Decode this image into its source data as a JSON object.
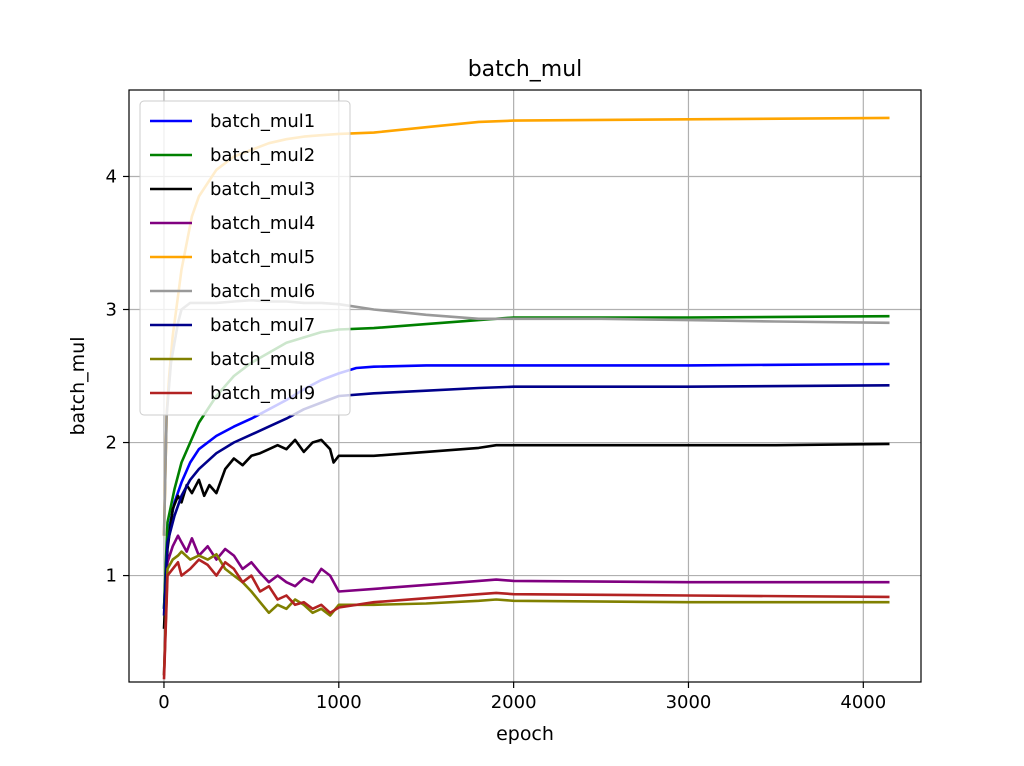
{
  "chart_data": {
    "type": "line",
    "title": "batch_mul",
    "xlabel": "epoch",
    "ylabel": "batch_mul",
    "xlim": [
      -200,
      4330
    ],
    "ylim": [
      0.2,
      4.65
    ],
    "xticks": [
      0,
      1000,
      2000,
      3000,
      4000
    ],
    "yticks": [
      1,
      2,
      3,
      4
    ],
    "grid": true,
    "legend_position": "upper left",
    "series": [
      {
        "name": "batch_mul1",
        "color": "#0000ff",
        "x": [
          0,
          20,
          60,
          100,
          150,
          200,
          300,
          400,
          500,
          600,
          700,
          800,
          900,
          1000,
          1100,
          1200,
          1500,
          2000,
          3000,
          4150
        ],
        "y": [
          0.75,
          1.3,
          1.55,
          1.7,
          1.85,
          1.95,
          2.05,
          2.12,
          2.18,
          2.25,
          2.32,
          2.4,
          2.47,
          2.52,
          2.56,
          2.57,
          2.58,
          2.58,
          2.58,
          2.59
        ]
      },
      {
        "name": "batch_mul2",
        "color": "#008000",
        "x": [
          0,
          20,
          60,
          100,
          150,
          200,
          300,
          400,
          500,
          700,
          900,
          1000,
          1200,
          1500,
          1800,
          2000,
          3000,
          4150
        ],
        "y": [
          0.75,
          1.4,
          1.65,
          1.85,
          2.0,
          2.15,
          2.35,
          2.5,
          2.6,
          2.75,
          2.83,
          2.85,
          2.86,
          2.89,
          2.92,
          2.94,
          2.94,
          2.95
        ]
      },
      {
        "name": "batch_mul3",
        "color": "#000000",
        "x": [
          0,
          20,
          50,
          80,
          100,
          130,
          160,
          200,
          230,
          260,
          300,
          350,
          400,
          450,
          500,
          550,
          600,
          650,
          700,
          750,
          800,
          850,
          900,
          950,
          970,
          1000,
          1200,
          1500,
          1800,
          1900,
          2000,
          2500,
          3000,
          3500,
          4150
        ],
        "y": [
          0.6,
          1.2,
          1.5,
          1.6,
          1.55,
          1.68,
          1.62,
          1.72,
          1.6,
          1.68,
          1.62,
          1.8,
          1.88,
          1.83,
          1.9,
          1.92,
          1.95,
          1.98,
          1.95,
          2.02,
          1.93,
          2.0,
          2.02,
          1.95,
          1.85,
          1.9,
          1.9,
          1.93,
          1.96,
          1.98,
          1.98,
          1.98,
          1.98,
          1.98,
          1.99
        ]
      },
      {
        "name": "batch_mul4",
        "color": "#800080",
        "x": [
          0,
          20,
          50,
          80,
          100,
          130,
          160,
          200,
          250,
          300,
          350,
          400,
          450,
          500,
          550,
          600,
          650,
          700,
          750,
          800,
          850,
          900,
          950,
          1000,
          1200,
          1500,
          1800,
          1900,
          2000,
          3000,
          4150
        ],
        "y": [
          0.25,
          1.1,
          1.22,
          1.3,
          1.25,
          1.18,
          1.28,
          1.15,
          1.22,
          1.12,
          1.2,
          1.15,
          1.05,
          1.1,
          1.02,
          0.95,
          1.0,
          0.95,
          0.92,
          0.98,
          0.95,
          1.05,
          1.0,
          0.88,
          0.9,
          0.93,
          0.96,
          0.97,
          0.96,
          0.95,
          0.95
        ]
      },
      {
        "name": "batch_mul5",
        "color": "#ffa500",
        "x": [
          0,
          15,
          30,
          50,
          80,
          100,
          130,
          160,
          200,
          300,
          400,
          500,
          600,
          700,
          800,
          900,
          1000,
          1200,
          1500,
          1800,
          2000,
          3000,
          4150
        ],
        "y": [
          1.3,
          2.2,
          2.5,
          2.8,
          3.1,
          3.3,
          3.5,
          3.7,
          3.85,
          4.05,
          4.15,
          4.2,
          4.25,
          4.28,
          4.3,
          4.31,
          4.32,
          4.33,
          4.37,
          4.41,
          4.42,
          4.43,
          4.44
        ]
      },
      {
        "name": "batch_mul6",
        "color": "#999999",
        "x": [
          0,
          15,
          40,
          80,
          100,
          150,
          200,
          300,
          400,
          500,
          600,
          700,
          800,
          900,
          1000,
          1200,
          1500,
          1800,
          2000,
          2500,
          3000,
          3500,
          4150
        ],
        "y": [
          1.3,
          2.2,
          2.6,
          2.9,
          3.0,
          3.05,
          3.05,
          3.05,
          3.06,
          3.07,
          3.06,
          3.06,
          3.05,
          3.05,
          3.04,
          3.0,
          2.96,
          2.93,
          2.93,
          2.93,
          2.92,
          2.91,
          2.9
        ]
      },
      {
        "name": "batch_mul7",
        "color": "#00008b",
        "x": [
          0,
          20,
          60,
          100,
          150,
          200,
          300,
          400,
          500,
          600,
          700,
          800,
          900,
          1000,
          1200,
          1500,
          1800,
          2000,
          3000,
          4150
        ],
        "y": [
          0.7,
          1.25,
          1.45,
          1.6,
          1.72,
          1.8,
          1.92,
          2.0,
          2.06,
          2.12,
          2.18,
          2.25,
          2.3,
          2.35,
          2.37,
          2.39,
          2.41,
          2.42,
          2.42,
          2.43
        ]
      },
      {
        "name": "batch_mul8",
        "color": "#808000",
        "x": [
          0,
          20,
          50,
          80,
          100,
          150,
          200,
          250,
          300,
          350,
          400,
          450,
          500,
          550,
          600,
          650,
          700,
          750,
          800,
          850,
          900,
          950,
          1000,
          1200,
          1500,
          1800,
          1900,
          2000,
          3000,
          4150
        ],
        "y": [
          0.25,
          1.05,
          1.12,
          1.15,
          1.18,
          1.12,
          1.15,
          1.12,
          1.16,
          1.05,
          1.0,
          0.95,
          0.88,
          0.8,
          0.72,
          0.78,
          0.75,
          0.82,
          0.78,
          0.72,
          0.75,
          0.7,
          0.78,
          0.78,
          0.79,
          0.81,
          0.82,
          0.81,
          0.8,
          0.8
        ]
      },
      {
        "name": "batch_mul9",
        "color": "#b22222",
        "x": [
          0,
          20,
          50,
          80,
          100,
          150,
          200,
          250,
          300,
          350,
          400,
          450,
          500,
          550,
          600,
          650,
          700,
          750,
          800,
          850,
          900,
          950,
          1000,
          1200,
          1500,
          1800,
          1900,
          2000,
          3000,
          4150
        ],
        "y": [
          0.22,
          1.0,
          1.05,
          1.1,
          1.0,
          1.05,
          1.12,
          1.08,
          1.0,
          1.1,
          1.05,
          0.95,
          1.0,
          0.88,
          0.92,
          0.82,
          0.85,
          0.78,
          0.8,
          0.75,
          0.78,
          0.72,
          0.76,
          0.8,
          0.83,
          0.86,
          0.87,
          0.86,
          0.85,
          0.84
        ]
      }
    ]
  }
}
